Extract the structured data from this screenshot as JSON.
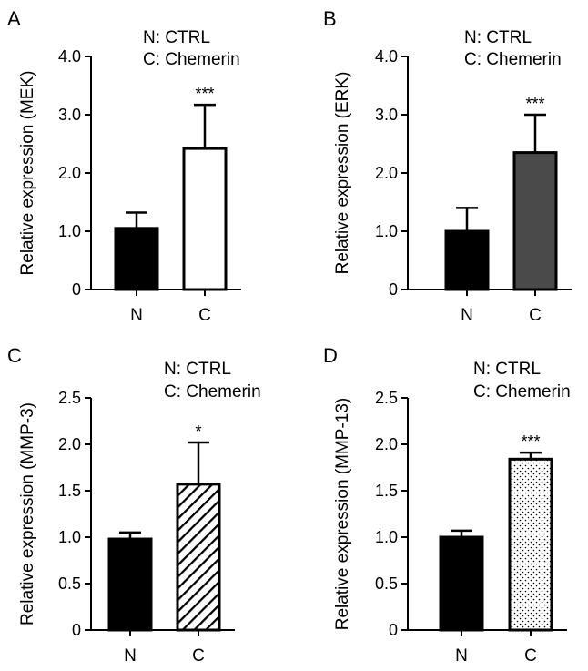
{
  "chart_data": [
    {
      "panel": "A",
      "type": "bar",
      "legend": [
        "N: CTRL",
        "C: Chemerin"
      ],
      "categories": [
        "N",
        "C"
      ],
      "values": [
        1.05,
        2.42
      ],
      "errors": [
        0.27,
        0.75
      ],
      "significance": [
        "",
        "***"
      ],
      "ylabel": "Relative expression (MEK)",
      "ylim": [
        0,
        4.0
      ],
      "yticks": [
        "0",
        "1.0",
        "2.0",
        "3.0",
        "4.0"
      ],
      "ytick_values": [
        0,
        1,
        2,
        3,
        4
      ],
      "fills": [
        "solid-black",
        "white"
      ]
    },
    {
      "panel": "B",
      "type": "bar",
      "legend": [
        "N: CTRL",
        "C: Chemerin"
      ],
      "categories": [
        "N",
        "C"
      ],
      "values": [
        1.0,
        2.35
      ],
      "errors": [
        0.4,
        0.65
      ],
      "significance": [
        "",
        "***"
      ],
      "ylabel": "Relative expression (ERK)",
      "ylim": [
        0,
        4.0
      ],
      "yticks": [
        "0",
        "1.0",
        "2.0",
        "3.0",
        "4.0"
      ],
      "ytick_values": [
        0,
        1,
        2,
        3,
        4
      ],
      "fills": [
        "solid-black",
        "dark-gray"
      ]
    },
    {
      "panel": "C",
      "type": "bar",
      "legend": [
        "N: CTRL",
        "C: Chemerin"
      ],
      "categories": [
        "N",
        "C"
      ],
      "values": [
        0.98,
        1.57
      ],
      "errors": [
        0.07,
        0.45
      ],
      "significance": [
        "",
        "*"
      ],
      "ylabel": "Relative expression (MMP-3)",
      "ylim": [
        0,
        2.5
      ],
      "yticks": [
        "0",
        "0.5",
        "1.0",
        "1.5",
        "2.0",
        "2.5"
      ],
      "ytick_values": [
        0,
        0.5,
        1.0,
        1.5,
        2.0,
        2.5
      ],
      "fills": [
        "solid-black",
        "diagonal-hatch"
      ]
    },
    {
      "panel": "D",
      "type": "bar",
      "legend": [
        "N: CTRL",
        "C: Chemerin"
      ],
      "categories": [
        "N",
        "C"
      ],
      "values": [
        1.0,
        1.84
      ],
      "errors": [
        0.07,
        0.07
      ],
      "significance": [
        "",
        "***"
      ],
      "ylabel": "Relative expression (MMP-13)",
      "ylim": [
        0,
        2.5
      ],
      "yticks": [
        "0",
        "0.5",
        "1.0",
        "1.5",
        "2.0",
        "2.5"
      ],
      "ytick_values": [
        0,
        0.5,
        1.0,
        1.5,
        2.0,
        2.5
      ],
      "fills": [
        "solid-black",
        "dotted"
      ]
    }
  ],
  "colors": {
    "black": "#000000",
    "white": "#ffffff",
    "dark_gray": "#4a4a4a"
  }
}
